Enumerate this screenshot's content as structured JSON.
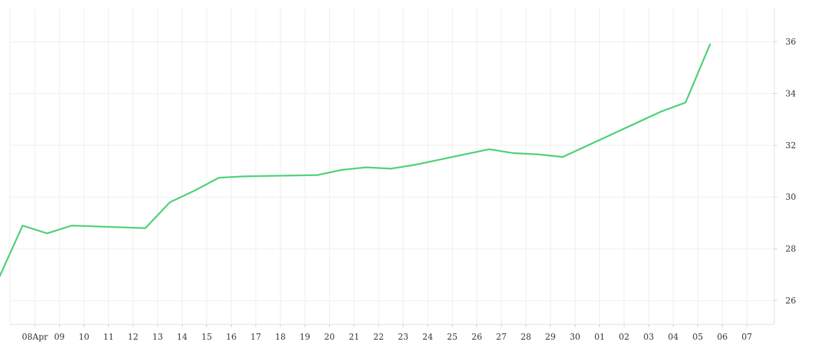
{
  "chart_data": {
    "type": "line",
    "title": "",
    "xlabel": "",
    "ylabel": "",
    "x_tick_labels": [
      "08Apr",
      "09",
      "10",
      "11",
      "12",
      "13",
      "14",
      "15",
      "16",
      "17",
      "18",
      "19",
      "20",
      "21",
      "22",
      "23",
      "24",
      "25",
      "26",
      "27",
      "28",
      "29",
      "30",
      "01",
      "02",
      "03",
      "04",
      "05",
      "06",
      "07"
    ],
    "y_tick_labels": [
      "26",
      "28",
      "30",
      "32",
      "34",
      "36"
    ],
    "ylim": [
      25.2,
      37.2
    ],
    "yaxis_position": "right",
    "grid": true,
    "series": [
      {
        "color": "#4fd17a",
        "points": [
          {
            "x": "2024-04-07",
            "y": 26.8
          },
          {
            "x": "2024-04-08",
            "y": 28.9
          },
          {
            "x": "2024-04-09",
            "y": 28.6
          },
          {
            "x": "2024-04-10",
            "y": 28.9
          },
          {
            "x": "2024-04-13",
            "y": 28.8
          },
          {
            "x": "2024-04-14",
            "y": 29.8
          },
          {
            "x": "2024-04-15",
            "y": 30.25
          },
          {
            "x": "2024-04-16",
            "y": 30.75
          },
          {
            "x": "2024-04-17",
            "y": 30.8
          },
          {
            "x": "2024-04-20",
            "y": 30.85
          },
          {
            "x": "2024-04-21",
            "y": 31.05
          },
          {
            "x": "2024-04-22",
            "y": 31.15
          },
          {
            "x": "2024-04-23",
            "y": 31.1
          },
          {
            "x": "2024-04-24",
            "y": 31.25
          },
          {
            "x": "2024-04-27",
            "y": 31.85
          },
          {
            "x": "2024-04-28",
            "y": 31.7
          },
          {
            "x": "2024-04-29",
            "y": 31.65
          },
          {
            "x": "2024-04-30",
            "y": 31.55
          },
          {
            "x": "2024-05-04",
            "y": 33.3
          },
          {
            "x": "2024-05-05",
            "y": 33.65
          },
          {
            "x": "2024-05-06",
            "y": 35.9
          }
        ]
      }
    ]
  }
}
